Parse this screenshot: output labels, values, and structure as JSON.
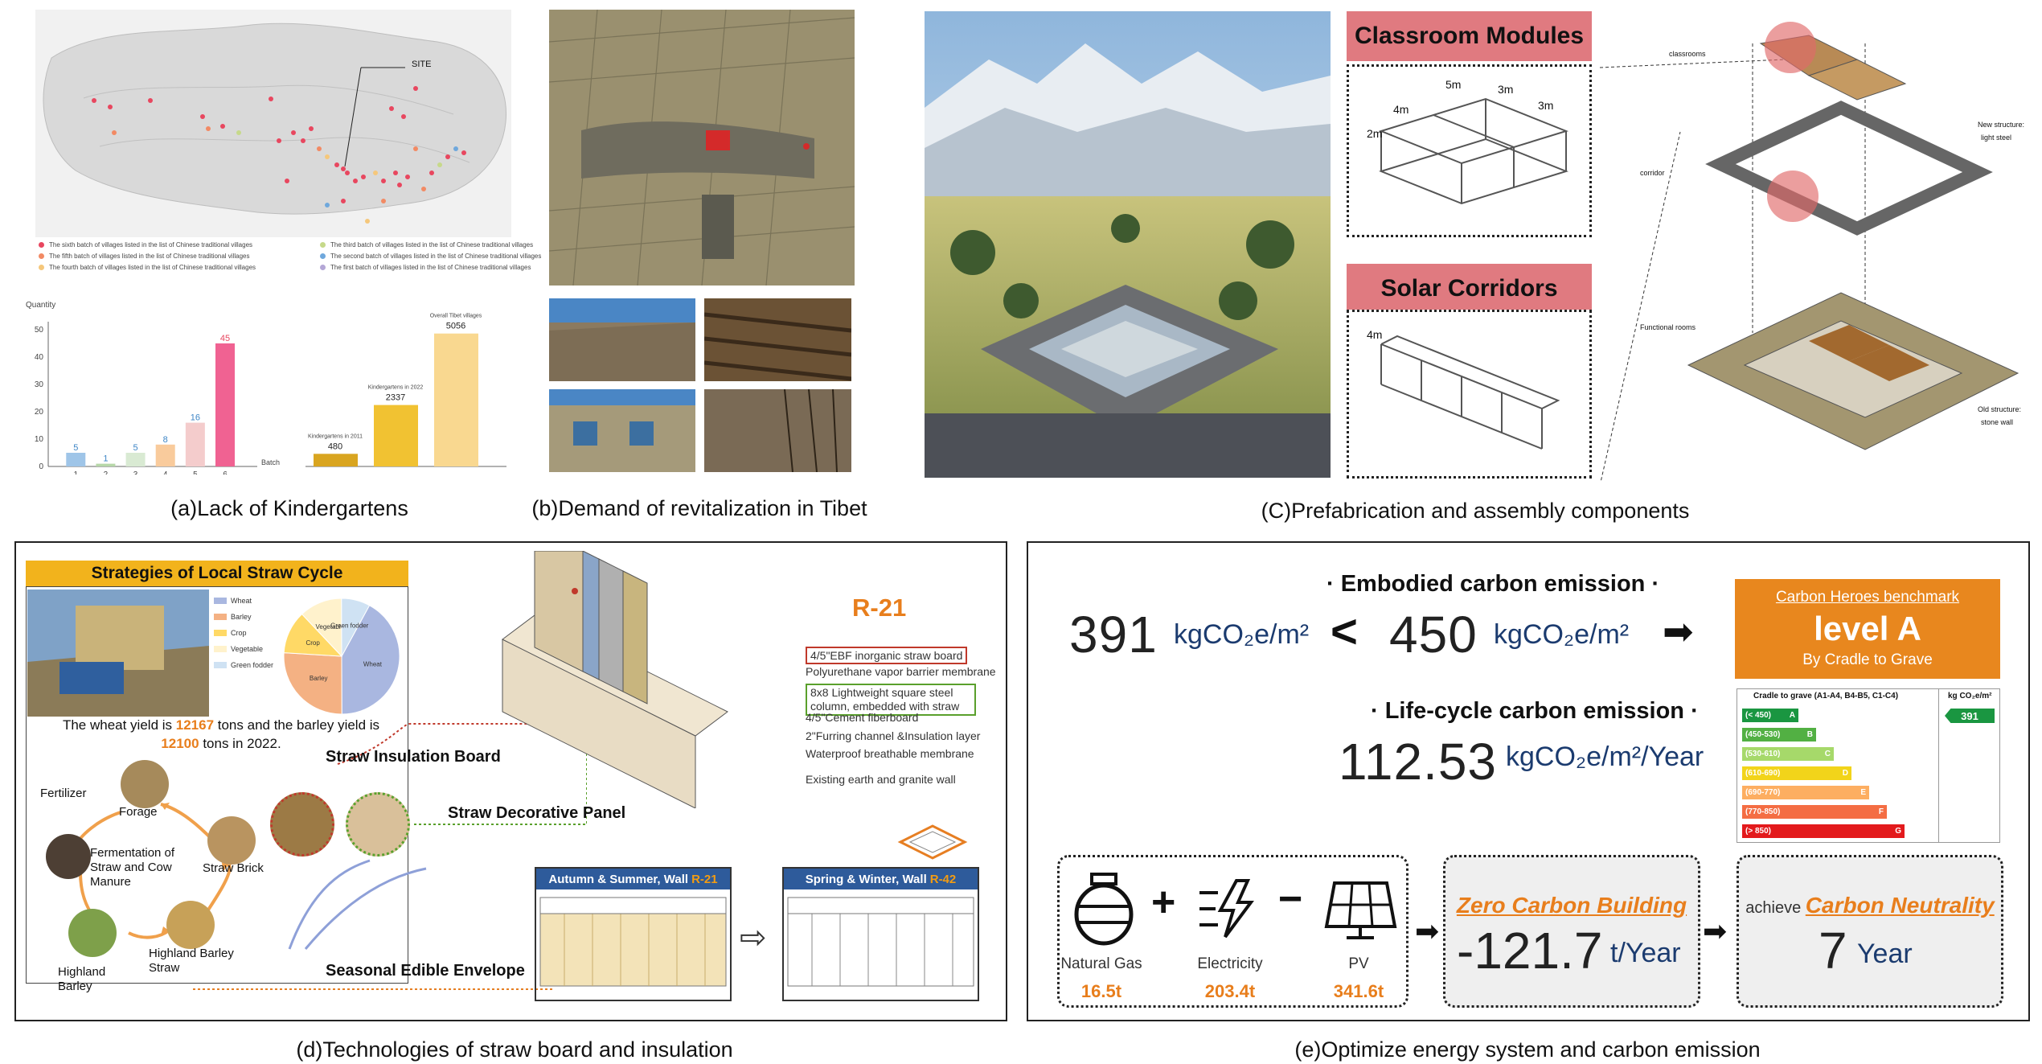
{
  "panel_a": {
    "caption": "(a)Lack of Kindergartens",
    "map_site_label": "SITE",
    "legend": [
      {
        "label": "The sixth batch of villages listed in the list of Chinese traditional villages",
        "color": "#e8475f"
      },
      {
        "label": "The fifth batch of villages listed in the list of Chinese traditional villages",
        "color": "#f28a64"
      },
      {
        "label": "The fourth batch of villages listed in the list of Chinese traditional villages",
        "color": "#f5c77b"
      },
      {
        "label": "The third batch of villages listed in the list of Chinese traditional villages",
        "color": "#c6d98a"
      },
      {
        "label": "The second batch of villages listed in the list of Chinese traditional villages",
        "color": "#6fa8dc"
      },
      {
        "label": "The first batch of villages listed in the list of Chinese traditional villages",
        "color": "#b4a7d6"
      }
    ],
    "bar_chart": {
      "ylabel": "Quantity",
      "xlabel": "Batch",
      "yticks": [
        "0",
        "10",
        "20",
        "30",
        "40",
        "50"
      ],
      "categories": [
        "1",
        "2",
        "3",
        "4",
        "5",
        "6"
      ],
      "values": [
        5,
        1,
        5,
        8,
        16,
        45
      ],
      "colors": [
        "#9fc5e8",
        "#b6d7a8",
        "#d9ead3",
        "#f9cb9c",
        "#f4cccc",
        "#f06292"
      ]
    },
    "kg_chart": {
      "labels": [
        "Kindergartens in 2011",
        "Kindergartens in 2022",
        "Overall Tibet villages"
      ],
      "values": [
        480,
        2337,
        5056
      ],
      "colors": [
        "#d9a520",
        "#f1c232",
        "#f9d890"
      ]
    }
  },
  "panel_b": {
    "caption": "(b)Demand of revitalization in Tibet"
  },
  "panel_c": {
    "caption": "(C)Prefabrication and assembly components",
    "label_modules": "Classroom Modules",
    "label_corridors": "Solar Corridors",
    "dims": [
      "5m",
      "3m",
      "3m",
      "4m",
      "2m",
      "2m",
      "5m",
      "3m",
      "4m"
    ],
    "callouts": {
      "classrooms": "classrooms",
      "corridor": "corridor",
      "functional_rooms": "Functional rooms",
      "new_structure": "New structure:",
      "new_structure_2": "light steel",
      "old_structure": "Old structure:",
      "old_structure_2": "stone wall"
    }
  },
  "panel_d": {
    "caption": "(d)Technologies of straw board and insulation",
    "strategies_title": "Strategies of Local Straw Cycle",
    "pie_legend": [
      "Wheat",
      "Barley",
      "Crop",
      "Vegetable",
      "Green fodder"
    ],
    "pie_colors": [
      "#a9b7e0",
      "#f4b183",
      "#ffd966",
      "#fff2cc",
      "#cfe2f3"
    ],
    "pie_labels": [
      "Wheat",
      "Barley",
      "Crop",
      "Vegetable",
      "Green fodder"
    ],
    "yield_text_1": "The wheat yield is ",
    "wheat_yield": "12167",
    "yield_text_2": " tons and the barley yield is",
    "barley_yield": "12100",
    "yield_text_3": " tons in 2022.",
    "cycle": {
      "fertilizer": "Fertilizer",
      "forage": "Forage",
      "fermentation": "Fermentation of Straw and Cow Manure",
      "straw_brick": "Straw Brick",
      "highland_barley": "Highland Barley",
      "highland_barley_straw": "Highland Barley Straw"
    },
    "straw_insulation": "Straw Insulation Board",
    "straw_decorative": "Straw Decorative Panel",
    "seasonal": "Seasonal Edible Envelope",
    "r21": "R-21",
    "layers": [
      "4/5\"EBF inorganic straw board",
      "Polyurethane vapor barrier membrane",
      "8x8 Lightweight square steel column, embedded with straw",
      "4/5\"Cement fiberboard",
      "2\"Furring channel &Insulation layer",
      "Waterproof breathable membrane",
      "Existing earth and granite wall"
    ],
    "wall1_title": "Autumn & Summer, Wall ",
    "wall1_r": "R-21",
    "wall2_title": "Spring & Winter, Wall ",
    "wall2_r": "R-42"
  },
  "panel_e": {
    "caption": "(e)Optimize energy system and carbon emission",
    "embodied_title": "· Embodied carbon emission ·",
    "embodied_value": "391",
    "embodied_unit": "kgCO₂e/m²",
    "lt": "<",
    "benchmark_value": "450",
    "benchmark_unit": "kgCO₂e/m²",
    "arrow": "➡",
    "lifecycle_title": "· Life-cycle carbon emission ·",
    "lifecycle_value": "112.53",
    "lifecycle_unit": "kgCO₂e/m²/Year",
    "badge_title": "Carbon Heroes benchmark",
    "badge_level": "level A",
    "badge_sub": "By Cradle to Grave",
    "rating_header": "Cradle to grave (A1-A4, B4-B5, C1-C4)",
    "rating_unit": "kg CO₂e/m²",
    "rating_value": "391",
    "rating_rows": [
      {
        "range": "(< 450)",
        "grade": "A",
        "color": "#1a9641"
      },
      {
        "range": "(450-530)",
        "grade": "B",
        "color": "#52b043"
      },
      {
        "range": "(530-610)",
        "grade": "C",
        "color": "#a6d96a"
      },
      {
        "range": "(610-690)",
        "grade": "D",
        "color": "#f2d41a"
      },
      {
        "range": "(690-770)",
        "grade": "E",
        "color": "#fdae61"
      },
      {
        "range": "(770-850)",
        "grade": "F",
        "color": "#f46d43"
      },
      {
        "range": "(> 850)",
        "grade": "G",
        "color": "#e31a1c"
      }
    ],
    "natural_gas_label": "Natural Gas",
    "natural_gas_value": "16.5t",
    "electricity_label": "Electricity",
    "electricity_value": "203.4t",
    "pv_label": "PV",
    "pv_value": "341.6t",
    "plus": "+",
    "minus": "−",
    "zero_title": "Zero Carbon Building",
    "zero_value": "-121.7",
    "zero_unit": "t/Year",
    "achieve": "achieve ",
    "neutral_title": "Carbon Neutrality",
    "neutral_value": "7",
    "neutral_unit": "Year"
  }
}
